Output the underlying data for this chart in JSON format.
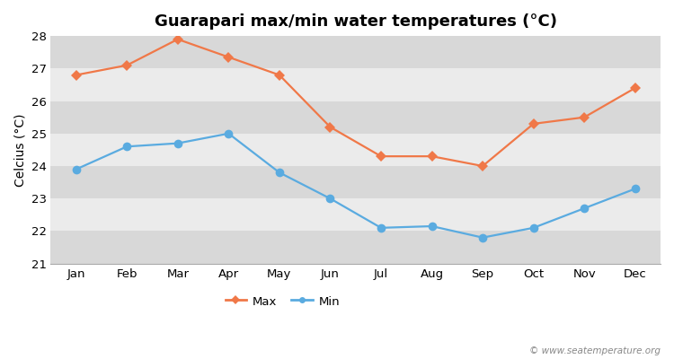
{
  "title": "Guarapari max/min water temperatures (°C)",
  "ylabel": "Celcius (°C)",
  "months": [
    "Jan",
    "Feb",
    "Mar",
    "Apr",
    "May",
    "Jun",
    "Jul",
    "Aug",
    "Sep",
    "Oct",
    "Nov",
    "Dec"
  ],
  "max_temps": [
    26.8,
    27.1,
    27.9,
    27.35,
    26.8,
    25.2,
    24.3,
    24.3,
    24.0,
    25.3,
    25.5,
    26.4
  ],
  "min_temps": [
    23.9,
    24.6,
    24.7,
    25.0,
    23.8,
    23.0,
    22.1,
    22.15,
    21.8,
    22.1,
    22.7,
    23.3
  ],
  "max_color": "#f07848",
  "min_color": "#5aabe0",
  "outer_bg_color": "#ffffff",
  "band_light": "#ebebeb",
  "band_dark": "#d8d8d8",
  "ylim": [
    21,
    28
  ],
  "yticks": [
    21,
    22,
    23,
    24,
    25,
    26,
    27,
    28
  ],
  "legend_labels": [
    "Max",
    "Min"
  ],
  "watermark": "© www.seatemperature.org",
  "max_marker": "D",
  "min_marker": "o",
  "markersize_max": 6,
  "markersize_min": 7,
  "linewidth": 1.6,
  "title_fontsize": 13,
  "axis_label_fontsize": 10,
  "tick_fontsize": 9.5
}
